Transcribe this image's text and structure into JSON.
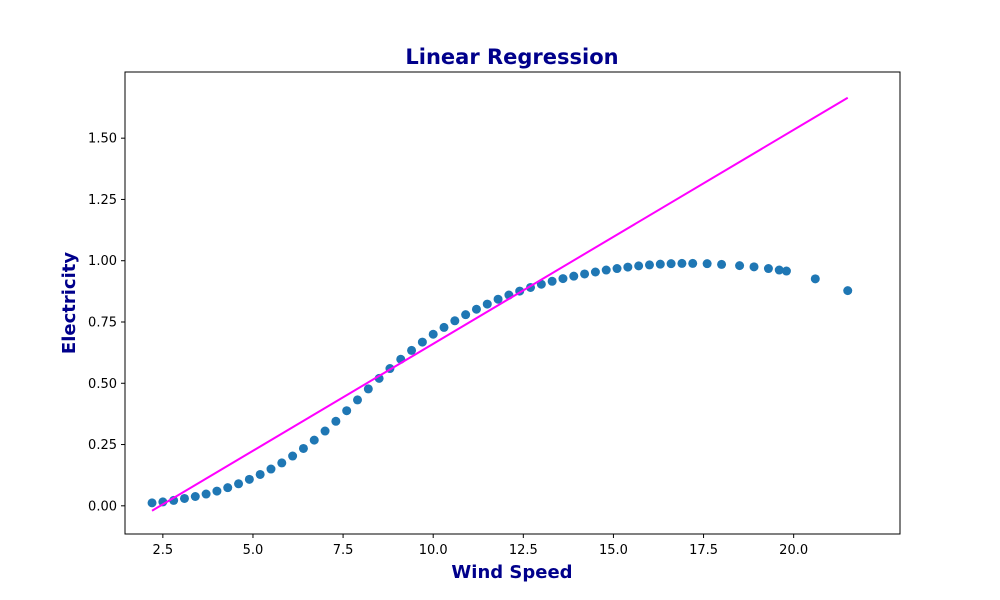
{
  "chart_data": {
    "type": "scatter",
    "title": "Linear Regression",
    "xlabel": "Wind Speed",
    "ylabel": "Electricity",
    "xlim": [
      1.45,
      22.95
    ],
    "ylim": [
      -0.115,
      1.77
    ],
    "x_ticks": [
      2.5,
      5.0,
      7.5,
      10.0,
      12.5,
      15.0,
      17.5,
      20.0
    ],
    "x_tick_labels": [
      "2.5",
      "5.0",
      "7.5",
      "10.0",
      "12.5",
      "15.0",
      "17.5",
      "20.0"
    ],
    "y_ticks": [
      0.0,
      0.25,
      0.5,
      0.75,
      1.0,
      1.25,
      1.5
    ],
    "y_tick_labels": [
      "0.00",
      "0.25",
      "0.50",
      "0.75",
      "1.00",
      "1.25",
      "1.50"
    ],
    "grid": false,
    "series": [
      {
        "type": "scatter",
        "color": "#1f77b4",
        "points": [
          [
            2.2,
            0.012
          ],
          [
            2.5,
            0.016
          ],
          [
            2.8,
            0.022
          ],
          [
            3.1,
            0.03
          ],
          [
            3.4,
            0.038
          ],
          [
            3.7,
            0.048
          ],
          [
            4.0,
            0.06
          ],
          [
            4.3,
            0.074
          ],
          [
            4.6,
            0.09
          ],
          [
            4.9,
            0.108
          ],
          [
            5.2,
            0.128
          ],
          [
            5.5,
            0.15
          ],
          [
            5.8,
            0.175
          ],
          [
            6.1,
            0.203
          ],
          [
            6.4,
            0.234
          ],
          [
            6.7,
            0.268
          ],
          [
            7.0,
            0.305
          ],
          [
            7.3,
            0.345
          ],
          [
            7.6,
            0.388
          ],
          [
            7.9,
            0.432
          ],
          [
            8.2,
            0.477
          ],
          [
            8.5,
            0.52
          ],
          [
            8.8,
            0.56
          ],
          [
            9.1,
            0.598
          ],
          [
            9.4,
            0.634
          ],
          [
            9.7,
            0.668
          ],
          [
            10.0,
            0.7
          ],
          [
            10.3,
            0.728
          ],
          [
            10.6,
            0.755
          ],
          [
            10.9,
            0.78
          ],
          [
            11.2,
            0.802
          ],
          [
            11.5,
            0.823
          ],
          [
            11.8,
            0.843
          ],
          [
            12.1,
            0.86
          ],
          [
            12.4,
            0.876
          ],
          [
            12.7,
            0.891
          ],
          [
            13.0,
            0.904
          ],
          [
            13.3,
            0.916
          ],
          [
            13.6,
            0.927
          ],
          [
            13.9,
            0.937
          ],
          [
            14.2,
            0.946
          ],
          [
            14.5,
            0.954
          ],
          [
            14.8,
            0.962
          ],
          [
            15.1,
            0.968
          ],
          [
            15.4,
            0.974
          ],
          [
            15.7,
            0.979
          ],
          [
            16.0,
            0.983
          ],
          [
            16.3,
            0.986
          ],
          [
            16.6,
            0.988
          ],
          [
            16.9,
            0.989
          ],
          [
            17.2,
            0.989
          ],
          [
            17.6,
            0.988
          ],
          [
            18.0,
            0.985
          ],
          [
            18.5,
            0.98
          ],
          [
            18.9,
            0.975
          ],
          [
            19.3,
            0.968
          ],
          [
            19.6,
            0.962
          ],
          [
            19.8,
            0.958
          ],
          [
            20.6,
            0.926
          ],
          [
            21.5,
            0.878
          ]
        ]
      },
      {
        "type": "line",
        "color": "#ff00ff",
        "points": [
          [
            2.2,
            -0.02
          ],
          [
            21.5,
            1.665
          ]
        ]
      }
    ]
  },
  "colors": {
    "title": "#00008b",
    "axis_label": "#00008b",
    "scatter": "#1f77b4",
    "regression_line": "#ff00ff"
  }
}
